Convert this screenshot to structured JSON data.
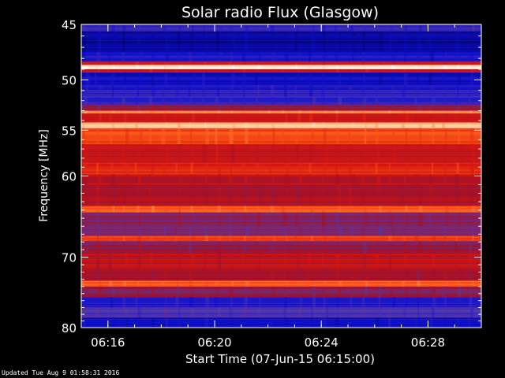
{
  "chart_data": {
    "type": "heatmap",
    "title": "Solar radio Flux (Glasgow)",
    "xlabel": "Start Time (07-Jun-15 06:15:00)",
    "ylabel": "Frequency [MHz]",
    "x_range": [
      "06:15:00",
      "06:30:00"
    ],
    "x_ticks": [
      "06:16",
      "06:20",
      "06:24",
      "06:28"
    ],
    "y_range": [
      45,
      80
    ],
    "y_scale": "log",
    "y_ticks": [
      45,
      50,
      55,
      60,
      70,
      80
    ],
    "colormap": [
      "#000060",
      "#1010d0",
      "#5a3aa8",
      "#a0102a",
      "#d81810",
      "#ff5a18",
      "#ffb070",
      "#ffffff"
    ],
    "bands": [
      {
        "freq": [
          45.0,
          45.6
        ],
        "level": 0.2
      },
      {
        "freq": [
          45.6,
          47.4
        ],
        "level": 0.08
      },
      {
        "freq": [
          47.4,
          48.3
        ],
        "level": 0.15
      },
      {
        "freq": [
          48.3,
          48.6
        ],
        "level": 0.55
      },
      {
        "freq": [
          48.6,
          49.0
        ],
        "level": 0.98
      },
      {
        "freq": [
          49.0,
          49.3
        ],
        "level": 0.55
      },
      {
        "freq": [
          49.3,
          50.5
        ],
        "level": 0.12
      },
      {
        "freq": [
          50.5,
          51.6
        ],
        "level": 0.18
      },
      {
        "freq": [
          51.6,
          52.4
        ],
        "level": 0.22
      },
      {
        "freq": [
          52.4,
          53.0
        ],
        "level": 0.4
      },
      {
        "freq": [
          53.0,
          53.3
        ],
        "level": 0.8
      },
      {
        "freq": [
          53.3,
          54.2
        ],
        "level": 0.55
      },
      {
        "freq": [
          54.2,
          54.8
        ],
        "level": 0.88
      },
      {
        "freq": [
          54.8,
          56.5
        ],
        "level": 0.68
      },
      {
        "freq": [
          56.5,
          58.5
        ],
        "level": 0.52
      },
      {
        "freq": [
          58.5,
          59.8
        ],
        "level": 0.62
      },
      {
        "freq": [
          59.8,
          61.0
        ],
        "level": 0.5
      },
      {
        "freq": [
          61.0,
          63.5
        ],
        "level": 0.46
      },
      {
        "freq": [
          63.5,
          64.3
        ],
        "level": 0.72
      },
      {
        "freq": [
          64.3,
          66.0
        ],
        "level": 0.38
      },
      {
        "freq": [
          66.0,
          67.2
        ],
        "level": 0.34
      },
      {
        "freq": [
          67.2,
          67.9
        ],
        "level": 0.66
      },
      {
        "freq": [
          67.9,
          69.5
        ],
        "level": 0.4
      },
      {
        "freq": [
          69.5,
          71.5
        ],
        "level": 0.5
      },
      {
        "freq": [
          71.5,
          73.2
        ],
        "level": 0.44
      },
      {
        "freq": [
          73.2,
          74.0
        ],
        "level": 0.72
      },
      {
        "freq": [
          74.0,
          75.5
        ],
        "level": 0.38
      },
      {
        "freq": [
          75.5,
          77.0
        ],
        "level": 0.18
      },
      {
        "freq": [
          77.0,
          78.5
        ],
        "level": 0.26
      },
      {
        "freq": [
          78.5,
          80.0
        ],
        "level": 0.14
      }
    ],
    "grid": false,
    "legend": "none"
  },
  "footer": "Updated Tue Aug  9 01:58:31 2016"
}
